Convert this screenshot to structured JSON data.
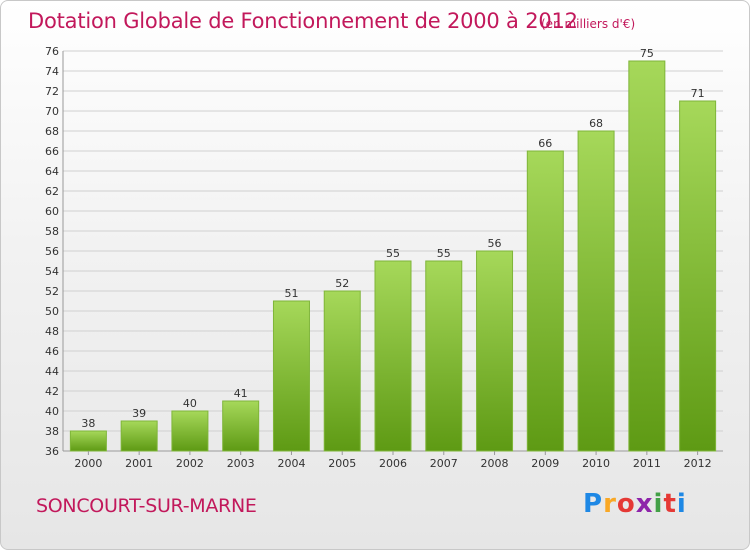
{
  "header": {
    "title": "Dotation Globale de Fonctionnement de 2000 à 2012",
    "subtitle": "(en milliers d'€)"
  },
  "footer": {
    "commune": "SONCOURT-SUR-MARNE",
    "logo_letters": [
      "P",
      "r",
      "o",
      "x",
      "i",
      "t",
      "i"
    ],
    "logo_colors": [
      "#1e88e5",
      "#f9a825",
      "#e53935",
      "#8e24aa",
      "#43a047",
      "#e53935",
      "#1e88e5"
    ]
  },
  "colors": {
    "accent": "#c2185b",
    "bar_top": "#a6d85a",
    "bar_bottom": "#5e9a14",
    "grid": "#d0d0d0",
    "axis_text": "#333333"
  },
  "chart_data": {
    "type": "bar",
    "title": "Dotation Globale de Fonctionnement de 2000 à 2012",
    "subtitle": "(en milliers d'€)",
    "categories": [
      "2000",
      "2001",
      "2002",
      "2003",
      "2004",
      "2005",
      "2006",
      "2007",
      "2008",
      "2009",
      "2010",
      "2011",
      "2012"
    ],
    "values": [
      38,
      39,
      40,
      41,
      51,
      52,
      55,
      55,
      56,
      66,
      68,
      75,
      71
    ],
    "ylim": [
      36,
      76
    ],
    "yticks": [
      36,
      38,
      40,
      42,
      44,
      46,
      48,
      50,
      52,
      54,
      56,
      58,
      60,
      62,
      64,
      66,
      68,
      70,
      72,
      74,
      76
    ],
    "xlabel": "",
    "ylabel": "",
    "grid": true
  }
}
